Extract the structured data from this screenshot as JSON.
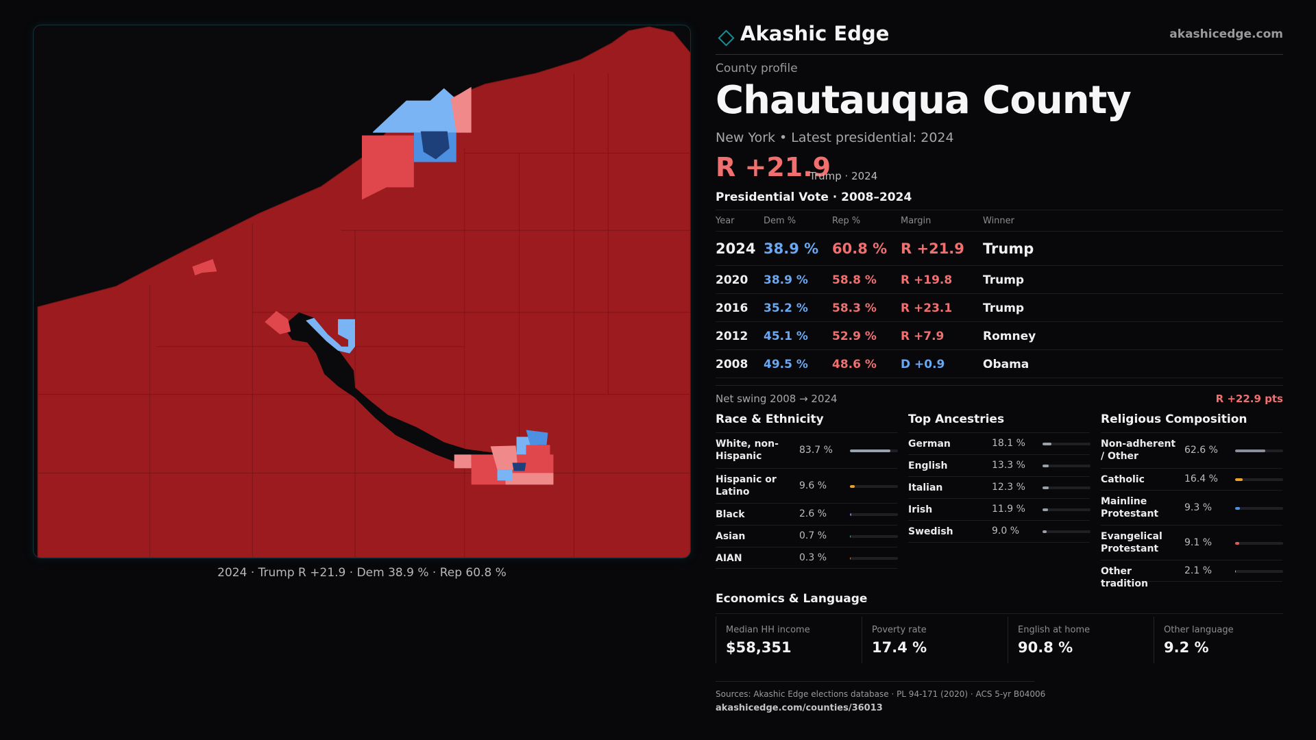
{
  "brand": {
    "name": "Akashic Edge",
    "url": "akashicedge.com",
    "accent": "#1f8b93"
  },
  "profile": {
    "eyebrow": "County profile",
    "title": "Chautauqua County",
    "subline": "New York  • Latest presidential: 2024",
    "margin": "R +21.9",
    "margin_note": "Trump · 2024"
  },
  "vote": {
    "title": "Presidential Vote · 2008–2024",
    "headers": {
      "year": "Year",
      "dem": "Dem %",
      "rep": "Rep %",
      "margin": "Margin",
      "winner": "Winner"
    },
    "rows": [
      {
        "year": "2024",
        "dem": "38.9 %",
        "rep": "60.8 %",
        "margin": "R +21.9",
        "winner": "Trump",
        "party": "R"
      },
      {
        "year": "2020",
        "dem": "38.9 %",
        "rep": "58.8 %",
        "margin": "R +19.8",
        "winner": "Trump",
        "party": "R"
      },
      {
        "year": "2016",
        "dem": "35.2 %",
        "rep": "58.3 %",
        "margin": "R +23.1",
        "winner": "Trump",
        "party": "R"
      },
      {
        "year": "2012",
        "dem": "45.1 %",
        "rep": "52.9 %",
        "margin": "R +7.9",
        "winner": "Romney",
        "party": "R"
      },
      {
        "year": "2008",
        "dem": "49.5 %",
        "rep": "48.6 %",
        "margin": "D +0.9",
        "winner": "Obama",
        "party": "D"
      }
    ]
  },
  "swing": {
    "label": "Net swing 2008 → 2024",
    "value": "R +22.9 pts"
  },
  "race": {
    "title": "Race & Ethnicity",
    "items": [
      {
        "label": "White, non-Hispanic",
        "value": "83.7 %",
        "fraction": 0.837,
        "color": "#9aa2ad"
      },
      {
        "label": "Hispanic or Latino",
        "value": "9.6 %",
        "fraction": 0.096,
        "color": "#e7a12c"
      },
      {
        "label": "Black",
        "value": "2.6 %",
        "fraction": 0.026,
        "color": "#8a6fe0"
      },
      {
        "label": "Asian",
        "value": "0.7 %",
        "fraction": 0.007,
        "color": "#4fb08a"
      },
      {
        "label": "AIAN",
        "value": "0.3 %",
        "fraction": 0.003,
        "color": "#d47a3a"
      }
    ]
  },
  "ancestry": {
    "title": "Top Ancestries",
    "items": [
      {
        "label": "German",
        "value": "18.1 %",
        "fraction": 0.181,
        "color": "#9aa2ad"
      },
      {
        "label": "English",
        "value": "13.3 %",
        "fraction": 0.133,
        "color": "#9aa2ad"
      },
      {
        "label": "Italian",
        "value": "12.3 %",
        "fraction": 0.123,
        "color": "#9aa2ad"
      },
      {
        "label": "Irish",
        "value": "11.9 %",
        "fraction": 0.119,
        "color": "#9aa2ad"
      },
      {
        "label": "Swedish",
        "value": "9.0 %",
        "fraction": 0.09,
        "color": "#9aa2ad"
      }
    ]
  },
  "religion": {
    "title": "Religious Composition",
    "items": [
      {
        "label": "Non-adherent / Other",
        "value": "62.6 %",
        "fraction": 0.626,
        "color": "#8a909a"
      },
      {
        "label": "Catholic",
        "value": "16.4 %",
        "fraction": 0.164,
        "color": "#e7a12c"
      },
      {
        "label": "Mainline Protestant",
        "value": "9.3 %",
        "fraction": 0.093,
        "color": "#4d8fe0"
      },
      {
        "label": "Evangelical Protestant",
        "value": "9.1 %",
        "fraction": 0.091,
        "color": "#e05a5a"
      },
      {
        "label": "Other tradition",
        "value": "2.1 %",
        "fraction": 0.021,
        "color": "#b8b8b8"
      }
    ]
  },
  "econ": {
    "title": "Economics & Language",
    "items": [
      {
        "label": "Median HH income",
        "value": "$58,351"
      },
      {
        "label": "Poverty rate",
        "value": "17.4 %"
      },
      {
        "label": "English at home",
        "value": "90.8 %"
      },
      {
        "label": "Other language",
        "value": "9.2 %"
      }
    ]
  },
  "map": {
    "caption": "2024 · Trump R +21.9 · Dem 38.9 % · Rep 60.8 %",
    "colors": {
      "base": "#9b1b1f",
      "light_red": "#e0474c",
      "pink": "#f08a8a",
      "blue": "#4d8fe0",
      "light_blue": "#7ab4f5",
      "dark_blue": "#1d3f7a",
      "lake": "#0a0a0c"
    }
  },
  "sources": {
    "text": "Sources: Akashic Edge elections database · PL 94-171 (2020) · ACS 5-yr B04006",
    "url": "akashicedge.com/counties/36013"
  }
}
